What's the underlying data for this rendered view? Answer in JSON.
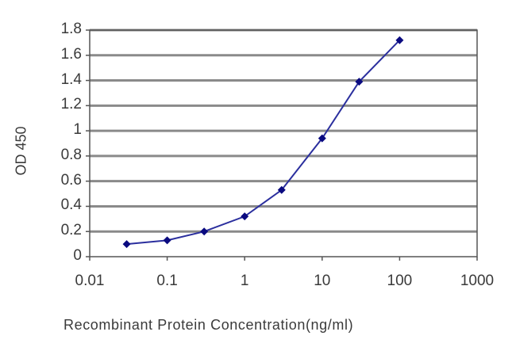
{
  "chart_data": {
    "type": "line",
    "title": "",
    "xlabel": "Recombinant Protein Concentration(ng/ml)",
    "ylabel": "OD 450",
    "x_scale": "log",
    "xlim": [
      0.01,
      1000
    ],
    "ylim": [
      0,
      1.8
    ],
    "x_ticks": [
      "0.01",
      "0.1",
      "1",
      "10",
      "100",
      "1000"
    ],
    "y_ticks": [
      "0",
      "0.2",
      "0.4",
      "0.6",
      "0.8",
      "1",
      "1.2",
      "1.4",
      "1.6",
      "1.8"
    ],
    "grid": {
      "horizontal": true,
      "vertical": false
    },
    "legend": null,
    "series": [
      {
        "name": "OD 450",
        "color": "#2b2f9e",
        "marker": "diamond",
        "marker_color": "#0a0a80",
        "x": [
          0.03,
          0.1,
          0.3,
          1,
          3,
          10,
          30,
          100
        ],
        "values": [
          0.1,
          0.13,
          0.2,
          0.32,
          0.53,
          0.94,
          1.39,
          1.72
        ]
      }
    ]
  },
  "axis": {
    "ylabel": "OD 450",
    "xlabel": "Recombinant Protein Concentration(ng/ml)"
  }
}
